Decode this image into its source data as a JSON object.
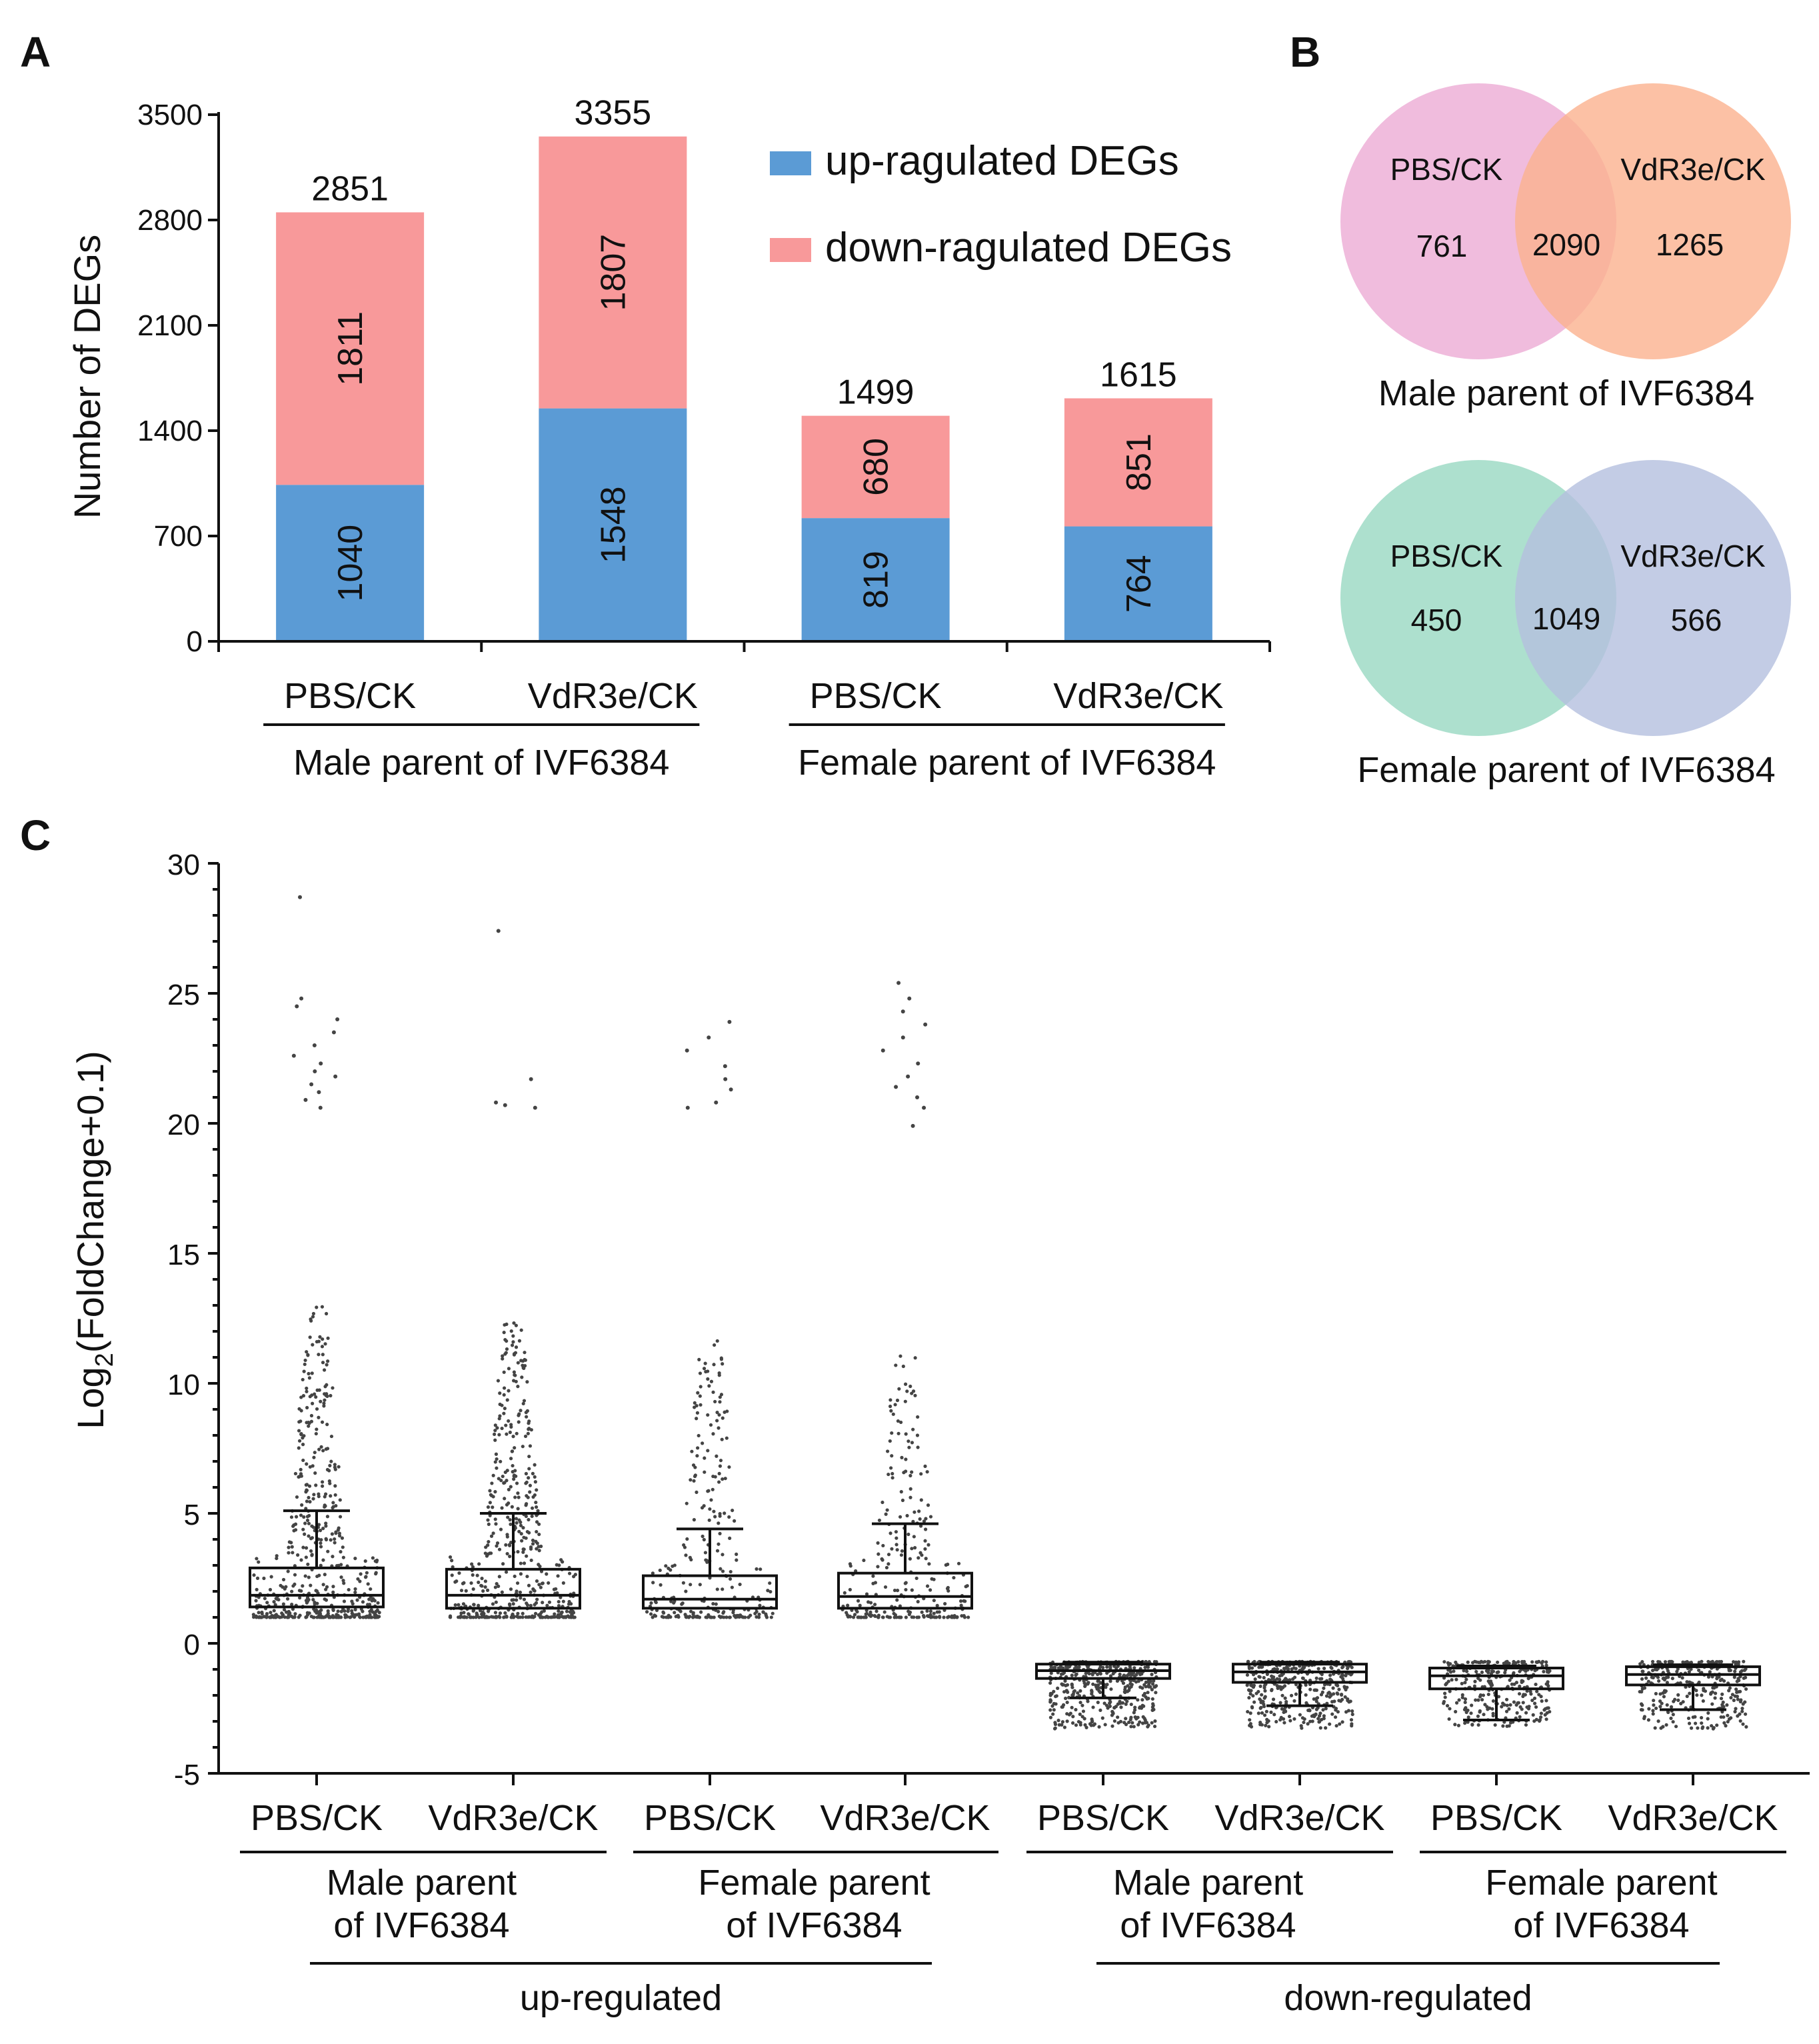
{
  "panel_labels": [
    "A",
    "B",
    "C"
  ],
  "colors": {
    "up": "#5b9bd5",
    "down": "#f8999a",
    "venn_male_pbs": "#ecabd5",
    "venn_male_vdr": "#fbb28f",
    "venn_female_pbs": "#9fdbc6",
    "venn_female_vdr": "#b4bfdf",
    "dots": "#444444"
  },
  "chart_data": [
    {
      "type": "bar",
      "id": "A",
      "ylabel": "Number of DEGs",
      "ylim": [
        0,
        3500
      ],
      "yticks": [
        0,
        700,
        1400,
        2100,
        2800,
        3500
      ],
      "ytick_labels": [
        "0",
        "700",
        "1400",
        "2100",
        "2800",
        "3500"
      ],
      "categories": [
        "PBS/CK",
        "VdR3e/CK",
        "PBS/CK",
        "VdR3e/CK"
      ],
      "groups": [
        {
          "label": "Male parent of IVF6384",
          "members": [
            0,
            1
          ]
        },
        {
          "label": "Female parent of IVF6384",
          "members": [
            2,
            3
          ]
        }
      ],
      "series": [
        {
          "name": "up-ragulated DEGs",
          "values": [
            1040,
            1548,
            819,
            764
          ],
          "labels": [
            "1040",
            "1548",
            "819",
            "764"
          ]
        },
        {
          "name": "down-ragulated DEGs",
          "values": [
            1811,
            1807,
            680,
            851
          ],
          "labels": [
            "1811",
            "1807",
            "680",
            "851"
          ]
        }
      ],
      "totals": [
        "2851",
        "3355",
        "1499",
        "1615"
      ],
      "legend": [
        "up-ragulated DEGs",
        "down-ragulated DEGs"
      ],
      "legend_position": "top-right"
    },
    {
      "type": "venn",
      "id": "B",
      "diagrams": [
        {
          "caption": "Male parent of IVF6384",
          "left_label": "PBS/CK",
          "right_label": "VdR3e/CK",
          "left_only": "761",
          "both": "2090",
          "right_only": "1265"
        },
        {
          "caption": "Female parent of IVF6384",
          "left_label": "PBS/CK",
          "right_label": "VdR3e/CK",
          "left_only": "450",
          "both": "1049",
          "right_only": "566"
        }
      ]
    },
    {
      "type": "box",
      "id": "C",
      "ylabel_main": "Log",
      "ylabel_sub": "2",
      "ylabel_rest": "(FoldChange+0.1)",
      "ylim": [
        -5,
        30
      ],
      "yticks": [
        -5,
        0,
        5,
        10,
        15,
        20,
        25,
        30
      ],
      "ytick_labels": [
        "-5",
        "0",
        "5",
        "10",
        "15",
        "20",
        "25",
        "30"
      ],
      "categories": [
        "PBS/CK",
        "VdR3e/CK",
        "PBS/CK",
        "VdR3e/CK",
        "PBS/CK",
        "VdR3e/CK",
        "PBS/CK",
        "VdR3e/CK"
      ],
      "subgroups": [
        {
          "label_line1": "Male parent",
          "label_line2": "of IVF6384",
          "members": [
            0,
            1
          ]
        },
        {
          "label_line1": "Female parent",
          "label_line2": "of IVF6384",
          "members": [
            2,
            3
          ]
        },
        {
          "label_line1": "Male parent",
          "label_line2": "of IVF6384",
          "members": [
            4,
            5
          ]
        },
        {
          "label_line1": "Female parent",
          "label_line2": "of IVF6384",
          "members": [
            6,
            7
          ]
        }
      ],
      "groups": [
        {
          "label": "up-regulated",
          "members": [
            0,
            1,
            2,
            3
          ]
        },
        {
          "label": "down-regulated",
          "members": [
            4,
            5,
            6,
            7
          ]
        }
      ],
      "boxes": [
        {
          "min": 1.0,
          "q1": 1.4,
          "median": 1.85,
          "q3": 2.9,
          "whisker_high": 5.1,
          "points_low": 1.0,
          "points_high": 13.1,
          "n": 520,
          "outliers": [
            20.6,
            20.9,
            21.2,
            21.5,
            21.8,
            22.0,
            22.3,
            22.6,
            23.0,
            23.5,
            24.0,
            24.5,
            24.8,
            28.7
          ]
        },
        {
          "min": 1.0,
          "q1": 1.35,
          "median": 1.85,
          "q3": 2.85,
          "whisker_high": 5.0,
          "points_low": 1.0,
          "points_high": 12.4,
          "n": 520,
          "outliers": [
            20.6,
            20.7,
            20.8,
            21.7,
            27.4
          ]
        },
        {
          "min": 1.0,
          "q1": 1.35,
          "median": 1.7,
          "q3": 2.6,
          "whisker_high": 4.4,
          "points_low": 1.0,
          "points_high": 11.7,
          "n": 260,
          "outliers": [
            20.6,
            20.8,
            21.3,
            21.7,
            22.2,
            22.8,
            23.3,
            23.9
          ]
        },
        {
          "min": 1.0,
          "q1": 1.35,
          "median": 1.8,
          "q3": 2.7,
          "whisker_high": 4.6,
          "points_low": 1.0,
          "points_high": 11.5,
          "n": 260,
          "outliers": [
            19.9,
            20.6,
            21.0,
            21.4,
            21.8,
            22.3,
            22.8,
            23.3,
            23.8,
            24.3,
            24.8,
            25.4
          ]
        },
        {
          "min": -0.8,
          "q1": -1.35,
          "median": -1.05,
          "q3": -0.8,
          "whisker_low": -2.1,
          "points_low": -3.3,
          "points_high": -0.7,
          "n": 420,
          "outliers": []
        },
        {
          "min": -0.8,
          "q1": -1.5,
          "median": -1.1,
          "q3": -0.8,
          "whisker_low": -2.4,
          "points_low": -3.3,
          "points_high": -0.7,
          "n": 420,
          "outliers": []
        },
        {
          "min": -0.8,
          "q1": -1.75,
          "median": -1.25,
          "q3": -0.95,
          "whisker_low": -2.95,
          "points_low": -3.2,
          "points_high": -0.7,
          "n": 300,
          "outliers": []
        },
        {
          "min": -0.8,
          "q1": -1.6,
          "median": -1.2,
          "q3": -0.9,
          "whisker_low": -2.55,
          "points_low": -3.3,
          "points_high": -0.7,
          "n": 300,
          "outliers": []
        }
      ]
    }
  ]
}
